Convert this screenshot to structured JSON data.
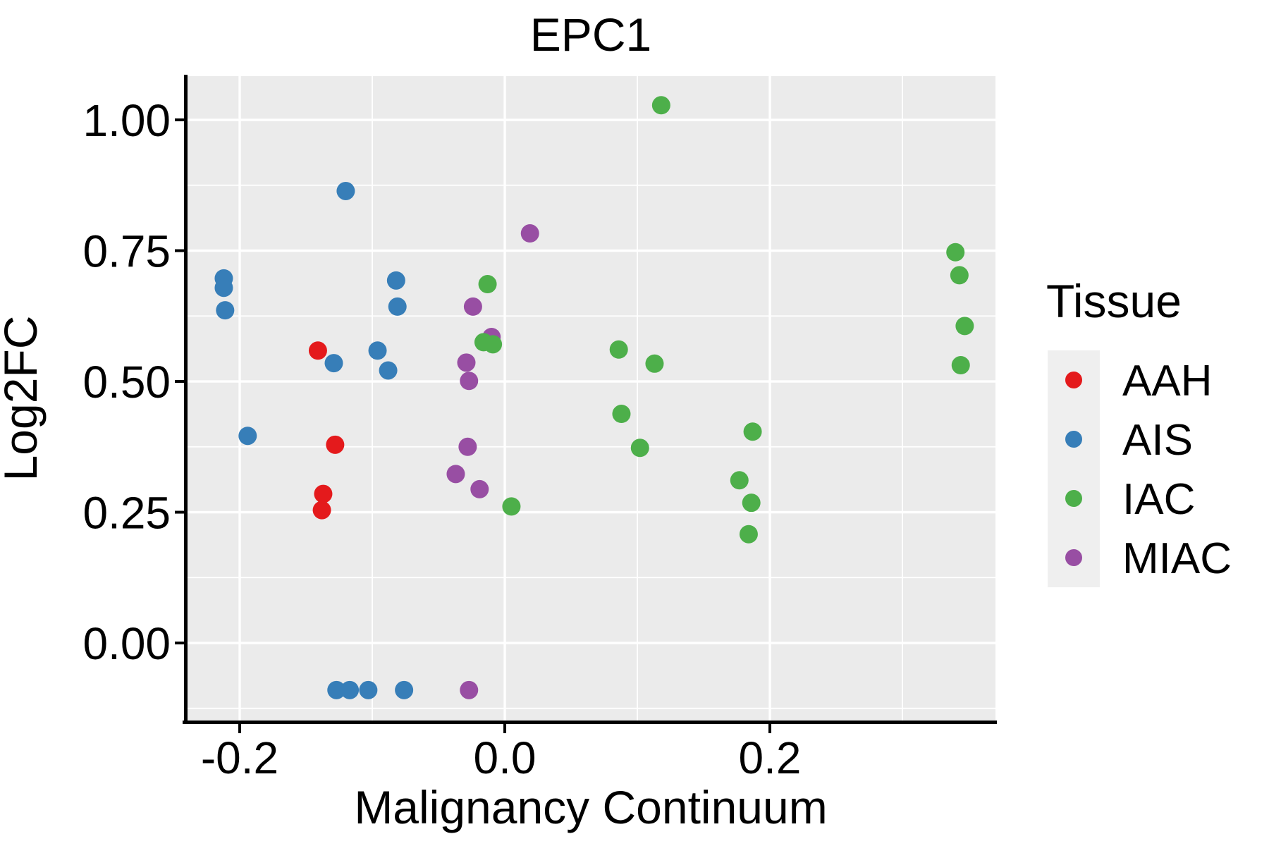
{
  "title": "EPC1",
  "chart_data": {
    "type": "scatter",
    "title": "EPC1",
    "xlabel": "Malignancy Continuum",
    "ylabel": "Log2FC",
    "xlim": [
      -0.2399,
      0.3702
    ],
    "ylim": [
      -0.1482,
      1.0836
    ],
    "grid": "white major+minor gridlines on gray panel",
    "panel_color": "#EBEBEB",
    "gridline_color": "#FFFFFF",
    "xticks": {
      "values": [
        -0.2,
        0.0,
        0.2
      ],
      "labels": [
        "-0.2",
        "0.0",
        "0.2"
      ],
      "minor": [
        -0.1,
        0.1,
        0.3
      ]
    },
    "yticks": {
      "values": [
        0.0,
        0.25,
        0.5,
        0.75,
        1.0
      ],
      "labels": [
        "0.00",
        "0.25",
        "0.50",
        "0.75",
        "1.00"
      ],
      "minor": [
        -0.125,
        0.125,
        0.375,
        0.625,
        0.875
      ]
    },
    "legend": {
      "title": "Tissue",
      "position": "right",
      "order": [
        "AAH",
        "AIS",
        "IAC",
        "MIAC"
      ]
    },
    "series": [
      {
        "name": "AAH",
        "color": "#E41A1C",
        "points": [
          [
            -0.141,
            0.559
          ],
          [
            -0.128,
            0.379
          ],
          [
            -0.137,
            0.285
          ],
          [
            -0.138,
            0.254
          ]
        ]
      },
      {
        "name": "AIS",
        "color": "#377EB8",
        "points": [
          [
            -0.12,
            0.864
          ],
          [
            -0.212,
            0.697
          ],
          [
            -0.212,
            0.679
          ],
          [
            -0.211,
            0.636
          ],
          [
            -0.194,
            0.396
          ],
          [
            -0.129,
            0.535
          ],
          [
            -0.096,
            0.559
          ],
          [
            -0.088,
            0.521
          ],
          [
            -0.082,
            0.693
          ],
          [
            -0.081,
            0.643
          ],
          [
            -0.127,
            -0.09
          ],
          [
            -0.117,
            -0.09
          ],
          [
            -0.103,
            -0.09
          ],
          [
            -0.076,
            -0.09
          ]
        ]
      },
      {
        "name": "MIAC",
        "color": "#984EA3",
        "points": [
          [
            0.019,
            0.783
          ],
          [
            -0.024,
            0.643
          ],
          [
            -0.01,
            0.585
          ],
          [
            -0.029,
            0.536
          ],
          [
            -0.027,
            0.501
          ],
          [
            -0.028,
            0.375
          ],
          [
            -0.037,
            0.323
          ],
          [
            -0.019,
            0.294
          ],
          [
            -0.027,
            -0.09
          ]
        ]
      },
      {
        "name": "IAC",
        "color": "#4DAF4A",
        "points": [
          [
            0.118,
            1.028
          ],
          [
            -0.013,
            0.686
          ],
          [
            -0.016,
            0.575
          ],
          [
            -0.009,
            0.571
          ],
          [
            0.005,
            0.261
          ],
          [
            0.086,
            0.561
          ],
          [
            0.113,
            0.534
          ],
          [
            0.088,
            0.438
          ],
          [
            0.102,
            0.373
          ],
          [
            0.187,
            0.404
          ],
          [
            0.177,
            0.311
          ],
          [
            0.186,
            0.268
          ],
          [
            0.184,
            0.208
          ],
          [
            0.34,
            0.747
          ],
          [
            0.343,
            0.703
          ],
          [
            0.347,
            0.606
          ],
          [
            0.344,
            0.531
          ]
        ]
      }
    ]
  }
}
